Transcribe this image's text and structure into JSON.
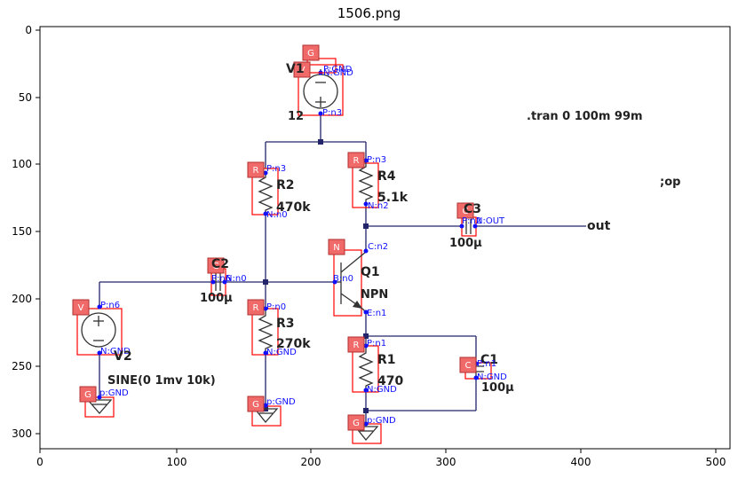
{
  "title": "1506.png",
  "x_ticks": [
    "0",
    "100",
    "200",
    "300",
    "400",
    "500"
  ],
  "y_ticks": [
    "0",
    "50",
    "100",
    "150",
    "200",
    "250",
    "300"
  ],
  "directives": {
    "tran": ".tran 0 100m 99m",
    "op": ";op"
  },
  "net_out": "out",
  "components": {
    "V1": {
      "name": "V1",
      "value": "12",
      "badge": "V",
      "pin_p": "P:n3",
      "pin_n": "N:GND"
    },
    "V2": {
      "name": "V2",
      "value": "SINE(0 1mv 10k)",
      "badge": "V",
      "pin_p": "P:n6",
      "pin_n": "N:GND"
    },
    "R2": {
      "name": "R2",
      "value": "470k",
      "badge": "R",
      "pin_p": "P:n3",
      "pin_n": "N:n0"
    },
    "R4": {
      "name": "R4",
      "value": "5.1k",
      "badge": "R",
      "pin_p": "P:n3",
      "pin_n": "N:n2"
    },
    "R3": {
      "name": "R3",
      "value": "270k",
      "badge": "R",
      "pin_p": "P:n0",
      "pin_n": "N:GND"
    },
    "R1": {
      "name": "R1",
      "value": "470",
      "badge": "R",
      "pin_p": "P:n1",
      "pin_n": "N:GND"
    },
    "C2": {
      "name": "C2",
      "value": "100µ",
      "badge": "C",
      "pin_p": "P:n6",
      "pin_n": "N:n0"
    },
    "C3": {
      "name": "C3",
      "value": "100µ",
      "badge": "C",
      "pin_p": "P:n2",
      "pin_n": "N:OUT"
    },
    "C1": {
      "name": "C1",
      "value": "100µ",
      "badge": "C",
      "pin_p": "P:n1",
      "pin_n": "N:GND"
    },
    "Q1": {
      "name": "Q1",
      "value": "NPN",
      "badge": "N",
      "pin_c": "C:n2",
      "pin_b": "B:n0",
      "pin_e": "E:n1"
    },
    "G1": {
      "badge": "G",
      "pin": "P:GND"
    },
    "G2": {
      "badge": "G",
      "pin": "p:GND"
    },
    "G3": {
      "badge": "G",
      "pin": "p:GND"
    },
    "G4": {
      "badge": "G",
      "pin": "p:GND"
    }
  }
}
